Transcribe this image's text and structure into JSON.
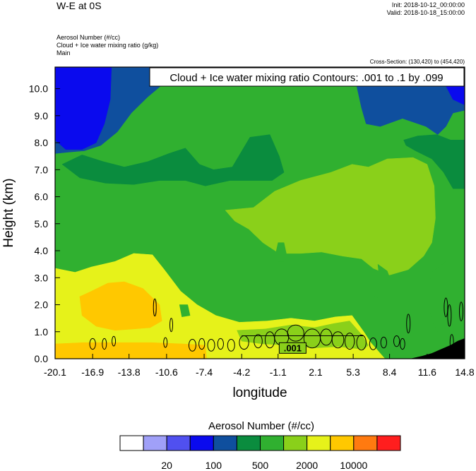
{
  "header": {
    "title": "W-E at 0S",
    "init": "Init: 2018-10-12_00:00:00",
    "valid": "Valid: 2018-10-18_15:00:00",
    "field_lines": [
      "Aerosol Number   (#/cc)",
      "Cloud + Ice water mixing ratio   (g/kg)",
      "Main"
    ],
    "cross_section": "Cross-Section: (130,420) to (454,420)"
  },
  "chart_data": {
    "type": "heatmap",
    "annotation": "Cloud + Ice water mixing ratio Contours: .001 to .1 by .099",
    "contour_label": ".001",
    "xlabel": "longitude",
    "ylabel": "Height (km)",
    "xlim": [
      -20.1,
      14.8
    ],
    "ylim": [
      0.0,
      10.8
    ],
    "x_ticks": [
      "-20.1",
      "-16.9",
      "-13.8",
      "-10.6",
      "-7.4",
      "-4.2",
      "-1.1",
      "2.1",
      "5.3",
      "8.4",
      "11.6",
      "14.8"
    ],
    "y_ticks": [
      "0.0",
      "1.0",
      "2.0",
      "3.0",
      "4.0",
      "5.0",
      "6.0",
      "7.0",
      "8.0",
      "9.0",
      "10.0"
    ],
    "grid": false,
    "colorbar": {
      "title": "Aerosol Number  (#/cc)",
      "labels": [
        "20",
        "100",
        "500",
        "2000",
        "10000"
      ],
      "colors": [
        "#ffffff",
        "#a0a0f8",
        "#5050f0",
        "#0a0aee",
        "#0f4f9e",
        "#0a8c3e",
        "#30b030",
        "#8ad01a",
        "#e6f21a",
        "#ffc800",
        "#ff7a10",
        "#ff1e1e"
      ]
    },
    "regions": [
      {
        "level": 4,
        "polygon": [
          [
            -20.1,
            10.8
          ],
          [
            -20.1,
            7.6
          ],
          [
            -19,
            7.65
          ],
          [
            -17.6,
            7.7
          ],
          [
            -16.2,
            7.9
          ],
          [
            -14.8,
            8.4
          ],
          [
            -13.6,
            9.1
          ],
          [
            -12.2,
            9.7
          ],
          [
            -11.1,
            10.1
          ],
          [
            -10.2,
            10.5
          ],
          [
            -9.6,
            10.8
          ]
        ]
      },
      {
        "level": 3,
        "polygon": [
          [
            -20.1,
            10.8
          ],
          [
            -20.1,
            8.1
          ],
          [
            -19.2,
            7.75
          ],
          [
            -17.8,
            7.75
          ],
          [
            -16.6,
            8.0
          ],
          [
            -15.9,
            8.7
          ],
          [
            -15.4,
            9.6
          ],
          [
            -15.3,
            10.8
          ]
        ]
      },
      {
        "level": 4,
        "polygon": [
          [
            5.0,
            10.8
          ],
          [
            5.6,
            10.1
          ],
          [
            6.0,
            9.3
          ],
          [
            6.4,
            8.7
          ],
          [
            7.6,
            8.6
          ],
          [
            9.5,
            8.9
          ],
          [
            11.5,
            8.6
          ],
          [
            12.5,
            8.3
          ],
          [
            13.2,
            8.6
          ],
          [
            13.8,
            9.1
          ],
          [
            14.8,
            9.2
          ],
          [
            14.8,
            10.8
          ]
        ]
      },
      {
        "level": 3,
        "polygon": [
          [
            12.6,
            10.8
          ],
          [
            13.2,
            10.1
          ],
          [
            13.8,
            9.6
          ],
          [
            14.8,
            9.4
          ],
          [
            14.8,
            10.8
          ]
        ]
      },
      {
        "level": 5,
        "polygon": [
          [
            -19.5,
            7.2
          ],
          [
            -17.8,
            7.55
          ],
          [
            -16.0,
            7.3
          ],
          [
            -14.2,
            7.1
          ],
          [
            -12.2,
            7.3
          ],
          [
            -10.4,
            7.6
          ],
          [
            -9.0,
            7.8
          ],
          [
            -7.8,
            7.2
          ],
          [
            -6.6,
            7.0
          ],
          [
            -5.0,
            7.1
          ],
          [
            -3.5,
            8.2
          ],
          [
            -1.8,
            8.3
          ],
          [
            -1.0,
            7.5
          ],
          [
            -0.6,
            6.9
          ],
          [
            -1.6,
            6.6
          ],
          [
            -3.2,
            6.6
          ],
          [
            -5.2,
            6.6
          ],
          [
            -7.3,
            6.4
          ],
          [
            -9.0,
            6.6
          ],
          [
            -11.2,
            6.6
          ],
          [
            -13.4,
            6.45
          ],
          [
            -15.8,
            6.5
          ],
          [
            -18.0,
            6.7
          ]
        ]
      },
      {
        "level": 5,
        "polygon": [
          [
            9.6,
            8.1
          ],
          [
            10.8,
            8.25
          ],
          [
            12.4,
            8.3
          ],
          [
            13.6,
            8.1
          ],
          [
            14.8,
            8.1
          ],
          [
            14.8,
            6.3
          ],
          [
            13.8,
            6.3
          ],
          [
            13.0,
            6.9
          ],
          [
            12.0,
            7.4
          ],
          [
            10.6,
            7.7
          ],
          [
            9.8,
            7.9
          ]
        ]
      },
      {
        "level": 7,
        "polygon": [
          [
            -5.6,
            5.5
          ],
          [
            -3.2,
            5.6
          ],
          [
            -1.4,
            6.2
          ],
          [
            0.8,
            6.6
          ],
          [
            3.4,
            6.9
          ],
          [
            5.2,
            7.2
          ],
          [
            6.6,
            7.1
          ],
          [
            8.2,
            7.4
          ],
          [
            10.4,
            7.45
          ],
          [
            11.6,
            7.2
          ],
          [
            12.2,
            6.4
          ],
          [
            12.3,
            5.2
          ],
          [
            12.0,
            4.3
          ],
          [
            11.3,
            3.8
          ],
          [
            10.0,
            3.3
          ],
          [
            8.4,
            3.1
          ],
          [
            7.0,
            3.35
          ],
          [
            6.0,
            3.7
          ],
          [
            4.4,
            3.8
          ],
          [
            2.6,
            3.95
          ],
          [
            0.8,
            3.9
          ],
          [
            -1.0,
            3.9
          ],
          [
            -2.4,
            4.3
          ],
          [
            -3.6,
            4.8
          ],
          [
            -4.8,
            5.1
          ]
        ]
      },
      {
        "level": 6,
        "polygon": [
          [
            7.4,
            3.5
          ],
          [
            8.2,
            3.25
          ],
          [
            9.0,
            2.3
          ],
          [
            9.2,
            1.2
          ],
          [
            9.4,
            0.35
          ],
          [
            9.0,
            0.2
          ],
          [
            8.4,
            0.7
          ],
          [
            8.0,
            1.6
          ],
          [
            7.6,
            2.7
          ]
        ]
      },
      {
        "level": 6,
        "polygon": [
          [
            12.0,
            3.2
          ],
          [
            13.2,
            3.6
          ],
          [
            14.8,
            3.65
          ],
          [
            14.8,
            0.2
          ],
          [
            13.8,
            0.3
          ],
          [
            13.0,
            0.6
          ],
          [
            12.0,
            1.4
          ],
          [
            11.6,
            2.4
          ]
        ]
      },
      {
        "level": 8,
        "polygon": [
          [
            -20.1,
            3.35
          ],
          [
            -18.4,
            3.2
          ],
          [
            -17.0,
            3.4
          ],
          [
            -15.0,
            3.6
          ],
          [
            -13.4,
            3.9
          ],
          [
            -11.8,
            3.85
          ],
          [
            -10.8,
            3.3
          ],
          [
            -9.4,
            2.5
          ],
          [
            -8.0,
            2.0
          ],
          [
            -6.4,
            1.6
          ],
          [
            -4.4,
            1.35
          ],
          [
            -2.0,
            1.4
          ],
          [
            0.0,
            1.5
          ],
          [
            2.0,
            1.4
          ],
          [
            3.8,
            1.55
          ],
          [
            5.2,
            1.6
          ],
          [
            6.2,
            1.0
          ],
          [
            6.8,
            0.6
          ],
          [
            7.4,
            0.3
          ],
          [
            8.0,
            0.0
          ],
          [
            -20.1,
            0.0
          ]
        ]
      },
      {
        "level": 7,
        "polygon": [
          [
            -4.6,
            1.05
          ],
          [
            -2.2,
            1.1
          ],
          [
            0.0,
            1.25
          ],
          [
            2.0,
            1.15
          ],
          [
            3.6,
            1.3
          ],
          [
            5.0,
            1.4
          ],
          [
            6.0,
            0.9
          ],
          [
            6.6,
            0.5
          ],
          [
            6.2,
            0.35
          ],
          [
            4.0,
            0.45
          ],
          [
            2.0,
            0.4
          ],
          [
            0.0,
            0.5
          ],
          [
            -2.4,
            0.55
          ],
          [
            -4.2,
            0.65
          ]
        ]
      },
      {
        "level": 9,
        "polygon": [
          [
            -18.0,
            2.3
          ],
          [
            -17.0,
            2.5
          ],
          [
            -15.6,
            2.8
          ],
          [
            -14.2,
            2.85
          ],
          [
            -12.6,
            2.6
          ],
          [
            -11.2,
            2.0
          ],
          [
            -11.0,
            1.4
          ],
          [
            -12.0,
            1.15
          ],
          [
            -13.4,
            1.1
          ],
          [
            -15.0,
            1.05
          ],
          [
            -16.6,
            1.2
          ],
          [
            -17.8,
            1.6
          ]
        ]
      },
      {
        "level": 9,
        "polygon": [
          [
            -20.1,
            0.55
          ],
          [
            -17.6,
            0.6
          ],
          [
            -14.8,
            0.6
          ],
          [
            -12.0,
            0.6
          ],
          [
            -9.2,
            0.55
          ],
          [
            -7.3,
            0.5
          ],
          [
            -7.2,
            0.0
          ],
          [
            -20.1,
            0.0
          ]
        ]
      },
      {
        "level": 6,
        "polygon": [
          [
            -1.1,
            4.3
          ],
          [
            -0.6,
            4.3
          ],
          [
            -0.4,
            3.9
          ],
          [
            -0.6,
            3.6
          ],
          [
            -1.1,
            3.6
          ],
          [
            -1.3,
            3.9
          ]
        ]
      },
      {
        "level": 6,
        "polygon": [
          [
            6.5,
            3.1
          ],
          [
            7.3,
            3.25
          ],
          [
            7.9,
            2.7
          ],
          [
            7.6,
            2.2
          ],
          [
            6.8,
            2.4
          ]
        ]
      },
      {
        "level": 6,
        "polygon": [
          [
            -9.5,
            2.0
          ],
          [
            -8.8,
            2.0
          ],
          [
            -8.6,
            1.6
          ],
          [
            -9.3,
            1.55
          ]
        ]
      },
      {
        "level": 0,
        "polygon": [
          [
            10.2,
            0.0
          ],
          [
            11.2,
            0.1
          ],
          [
            12.0,
            0.2
          ],
          [
            12.8,
            0.35
          ],
          [
            13.6,
            0.5
          ],
          [
            14.2,
            0.65
          ],
          [
            14.8,
            0.75
          ],
          [
            14.8,
            0.0
          ]
        ]
      }
    ],
    "cloud_contours": [
      {
        "cx": -11.6,
        "cy": 1.9,
        "rx": 0.12,
        "ry": 0.32
      },
      {
        "cx": -10.2,
        "cy": 1.25,
        "rx": 0.12,
        "ry": 0.25
      },
      {
        "cx": -10.7,
        "cy": 0.6,
        "rx": 0.15,
        "ry": 0.18
      },
      {
        "cx": -16.9,
        "cy": 0.55,
        "rx": 0.25,
        "ry": 0.2
      },
      {
        "cx": -15.9,
        "cy": 0.55,
        "rx": 0.18,
        "ry": 0.2
      },
      {
        "cx": -15.1,
        "cy": 0.65,
        "rx": 0.15,
        "ry": 0.18
      },
      {
        "cx": -8.4,
        "cy": 0.5,
        "rx": 0.3,
        "ry": 0.22
      },
      {
        "cx": -7.6,
        "cy": 0.55,
        "rx": 0.25,
        "ry": 0.2
      },
      {
        "cx": -6.8,
        "cy": 0.5,
        "rx": 0.3,
        "ry": 0.22
      },
      {
        "cx": -6.0,
        "cy": 0.55,
        "rx": 0.25,
        "ry": 0.2
      },
      {
        "cx": -5.1,
        "cy": 0.5,
        "rx": 0.3,
        "ry": 0.22
      },
      {
        "cx": -4.0,
        "cy": 0.6,
        "rx": 0.4,
        "ry": 0.25
      },
      {
        "cx": -2.8,
        "cy": 0.65,
        "rx": 0.35,
        "ry": 0.25
      },
      {
        "cx": -1.8,
        "cy": 0.7,
        "rx": 0.4,
        "ry": 0.3
      },
      {
        "cx": -0.8,
        "cy": 0.8,
        "rx": 0.6,
        "ry": 0.3
      },
      {
        "cx": 0.4,
        "cy": 0.95,
        "rx": 0.7,
        "ry": 0.3
      },
      {
        "cx": 1.8,
        "cy": 0.75,
        "rx": 0.7,
        "ry": 0.35
      },
      {
        "cx": 3.0,
        "cy": 0.8,
        "rx": 0.5,
        "ry": 0.3
      },
      {
        "cx": 4.0,
        "cy": 0.7,
        "rx": 0.5,
        "ry": 0.3
      },
      {
        "cx": 5.0,
        "cy": 0.65,
        "rx": 0.4,
        "ry": 0.3
      },
      {
        "cx": 6.0,
        "cy": 0.6,
        "rx": 0.4,
        "ry": 0.28
      },
      {
        "cx": 7.0,
        "cy": 0.55,
        "rx": 0.3,
        "ry": 0.22
      },
      {
        "cx": 7.9,
        "cy": 0.6,
        "rx": 0.25,
        "ry": 0.2
      },
      {
        "cx": 9.0,
        "cy": 0.65,
        "rx": 0.25,
        "ry": 0.2
      },
      {
        "cx": 10.0,
        "cy": 1.3,
        "rx": 0.15,
        "ry": 0.35
      },
      {
        "cx": 9.5,
        "cy": 0.55,
        "rx": 0.2,
        "ry": 0.2
      },
      {
        "cx": 13.2,
        "cy": 1.9,
        "rx": 0.15,
        "ry": 0.35
      },
      {
        "cx": 13.5,
        "cy": 1.6,
        "rx": 0.15,
        "ry": 0.4
      },
      {
        "cx": 14.5,
        "cy": 1.75,
        "rx": 0.15,
        "ry": 0.35
      },
      {
        "cx": 13.7,
        "cy": 0.6,
        "rx": 0.15,
        "ry": 0.3
      }
    ]
  }
}
